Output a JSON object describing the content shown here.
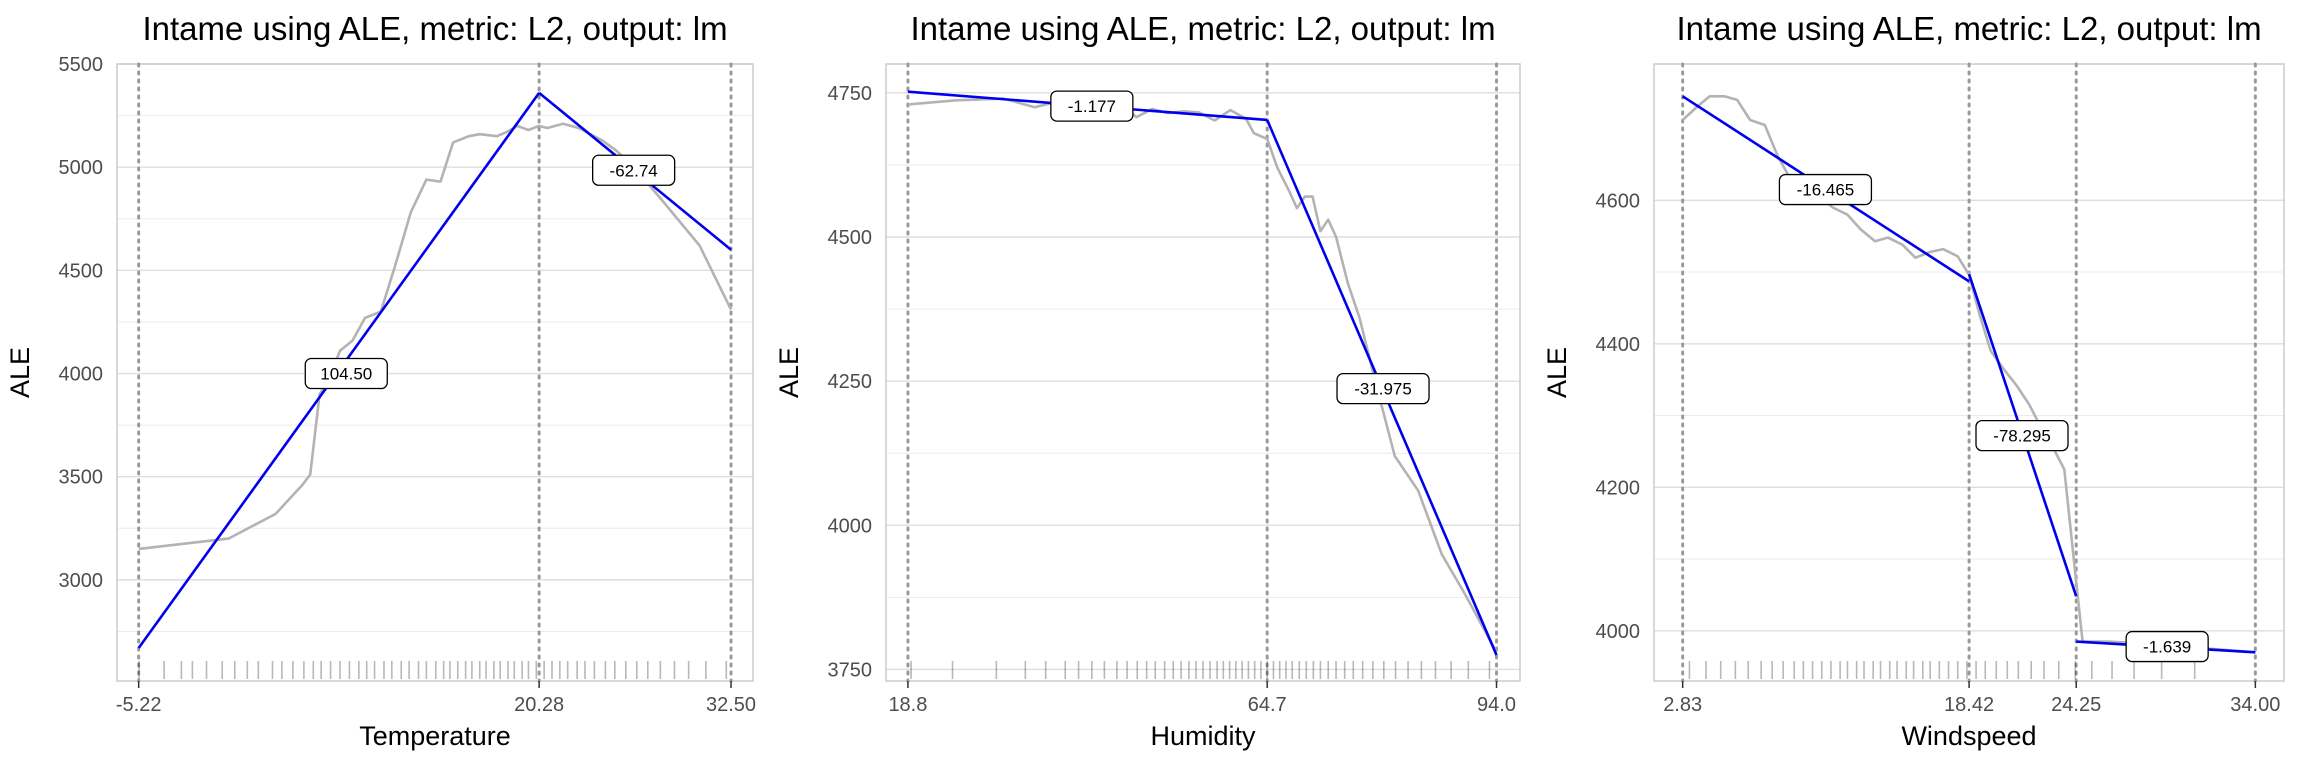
{
  "colors": {
    "ale_line": "#b3b3b3",
    "fit_line": "#0000ee",
    "gridline": "#ebebeb",
    "breakpoint_line": "#999999",
    "rug": "#000000",
    "label_border": "#000000",
    "panel_border": "#cccccc"
  },
  "chart_data": [
    {
      "type": "line",
      "title": "Intame using ALE, metric: L2, output: lm",
      "xlabel": "Temperature",
      "ylabel": "ALE",
      "xlim": [
        -6.6,
        33.9
      ],
      "ylim": [
        2510,
        5500
      ],
      "x_ticks": [
        -5.22,
        20.28,
        32.5
      ],
      "x_tick_labels": [
        "-5.22",
        "20.28",
        "32.50"
      ],
      "y_ticks": [
        3000,
        3500,
        4000,
        4500,
        5000,
        5500
      ],
      "y_tick_labels": [
        "3000",
        "3500",
        "4000",
        "4500",
        "5000",
        "5500"
      ],
      "breakpoints": [
        -5.22,
        20.28,
        32.5
      ],
      "ale_series": {
        "x": [
          -5.22,
          0.5,
          3.5,
          5.2,
          5.7,
          6.3,
          6.8,
          7.6,
          8.4,
          9.2,
          10.2,
          11.1,
          12.1,
          13.1,
          14.0,
          14.8,
          15.8,
          16.5,
          17.6,
          18.2,
          18.9,
          19.6,
          20.28,
          20.8,
          21.8,
          22.8,
          24.3,
          25.2,
          26.3,
          28.0,
          30.5,
          32.5
        ],
        "y": [
          3150,
          3200,
          3320,
          3460,
          3510,
          3900,
          3960,
          4110,
          4160,
          4270,
          4300,
          4520,
          4780,
          4940,
          4930,
          5120,
          5150,
          5160,
          5150,
          5170,
          5200,
          5180,
          5200,
          5190,
          5210,
          5190,
          5130,
          5080,
          5000,
          4850,
          4620,
          4310
        ]
      },
      "fit_segments": [
        {
          "x": [
            -5.22,
            20.28
          ],
          "y": [
            2670,
            5360
          ],
          "slope_label": "104.50",
          "label_at": [
            8.0,
            4000
          ]
        },
        {
          "x": [
            20.28,
            32.5
          ],
          "y": [
            5360,
            4600
          ],
          "slope_label": "-62.74",
          "label_at": [
            26.3,
            4985
          ]
        }
      ],
      "rug": [
        -5.2,
        -3.6,
        -2.5,
        -1.8,
        -0.9,
        0.1,
        0.9,
        1.7,
        2.4,
        3.3,
        3.9,
        4.6,
        5.3,
        5.9,
        6.4,
        7.0,
        7.6,
        8.2,
        8.8,
        9.3,
        9.8,
        10.4,
        10.9,
        11.5,
        12.0,
        12.6,
        13.1,
        13.7,
        14.2,
        14.6,
        15.1,
        15.6,
        16.0,
        16.5,
        16.9,
        17.4,
        17.8,
        18.3,
        18.7,
        19.2,
        19.6,
        20.1,
        20.6,
        21.1,
        21.6,
        22.1,
        22.7,
        23.2,
        23.8,
        24.5,
        25.1,
        25.8,
        26.5,
        27.2,
        28.0,
        28.9,
        29.8,
        30.9,
        32.2
      ]
    },
    {
      "type": "line",
      "title": "Intame using ALE, metric: L2, output: lm",
      "xlabel": "Humidity",
      "ylabel": "ALE",
      "xlim": [
        16.0,
        97.0
      ],
      "ylim": [
        3730,
        4800
      ],
      "x_ticks": [
        18.8,
        64.7,
        94.0
      ],
      "x_tick_labels": [
        "18.8",
        "64.7",
        "94.0"
      ],
      "y_ticks": [
        3750,
        4000,
        4250,
        4500,
        4750
      ],
      "y_tick_labels": [
        "3750",
        "4000",
        "4250",
        "4500",
        "4750"
      ],
      "breakpoints": [
        18.8,
        64.7,
        94.0
      ],
      "ale_series": {
        "x": [
          18.8,
          25.0,
          31.0,
          35.0,
          38.0,
          40.0,
          42.0,
          44.0,
          46.0,
          48.0,
          50.0,
          52.0,
          54.0,
          56.0,
          58.0,
          60.0,
          62.0,
          63.0,
          64.7,
          66.0,
          67.5,
          68.5,
          69.5,
          70.5,
          71.5,
          72.5,
          73.5,
          75.0,
          76.5,
          78.5,
          81.0,
          84.0,
          87.0,
          90.0,
          94.0
        ],
        "y": [
          4730,
          4737,
          4740,
          4725,
          4735,
          4720,
          4730,
          4715,
          4730,
          4708,
          4722,
          4715,
          4718,
          4716,
          4702,
          4720,
          4705,
          4680,
          4670,
          4620,
          4580,
          4550,
          4570,
          4570,
          4510,
          4530,
          4500,
          4420,
          4360,
          4250,
          4120,
          4060,
          3950,
          3880,
          3780
        ]
      },
      "fit_segments": [
        {
          "x": [
            18.8,
            64.7
          ],
          "y": [
            4752,
            4703
          ],
          "slope_label": "-1.177",
          "label_at": [
            42.3,
            4727
          ]
        },
        {
          "x": [
            64.7,
            94.0
          ],
          "y": [
            4703,
            3775
          ],
          "slope_label": "-31.975",
          "label_at": [
            79.5,
            4237
          ]
        }
      ],
      "rug": [
        19.2,
        24.5,
        30.1,
        33.8,
        36.4,
        38.9,
        40.6,
        42.3,
        43.9,
        45.5,
        46.8,
        48.1,
        49.3,
        50.4,
        51.6,
        52.7,
        53.7,
        54.7,
        55.6,
        56.5,
        57.4,
        58.3,
        59.1,
        59.9,
        60.7,
        61.5,
        62.3,
        63.1,
        63.9,
        64.7,
        65.5,
        66.3,
        67.1,
        67.9,
        68.8,
        69.7,
        70.6,
        71.5,
        72.5,
        73.5,
        74.6,
        75.7,
        76.9,
        78.2,
        79.6,
        81.1,
        82.7,
        84.4,
        86.2,
        88.2,
        90.4,
        93.1
      ]
    },
    {
      "type": "line",
      "title": "Intame using ALE, metric: L2, output: lm",
      "xlabel": "Windspeed",
      "ylabel": "ALE",
      "xlim": [
        1.27,
        35.56
      ],
      "ylim": [
        3930,
        4790
      ],
      "x_ticks": [
        2.83,
        18.42,
        24.25,
        34.0
      ],
      "x_tick_labels": [
        "2.83",
        "18.42",
        "24.25",
        "34.00"
      ],
      "y_ticks": [
        4000,
        4200,
        4400,
        4600
      ],
      "y_tick_labels": [
        "4000",
        "4200",
        "4400",
        "4600"
      ],
      "breakpoints": [
        2.83,
        18.42,
        24.25,
        34.0
      ],
      "ale_series": {
        "x": [
          2.83,
          3.6,
          4.3,
          5.1,
          5.8,
          6.5,
          7.3,
          8.0,
          8.8,
          9.5,
          10.3,
          11.0,
          11.8,
          12.5,
          13.3,
          14.0,
          14.8,
          15.5,
          16.3,
          17.0,
          17.8,
          18.42,
          19.0,
          19.6,
          20.3,
          21.0,
          21.7,
          22.3,
          23.0,
          23.6,
          24.25,
          24.6,
          26.0,
          28.0,
          30.0,
          32.0,
          34.0
        ],
        "y": [
          4712,
          4730,
          4745,
          4745,
          4740,
          4712,
          4705,
          4662,
          4625,
          4618,
          4605,
          4590,
          4580,
          4560,
          4543,
          4548,
          4538,
          4520,
          4528,
          4532,
          4522,
          4496,
          4440,
          4390,
          4365,
          4342,
          4315,
          4285,
          4255,
          4225,
          4068,
          3985,
          3985,
          3982,
          3978,
          3974,
          3970
        ]
      },
      "fit_segments": [
        {
          "x": [
            2.83,
            18.42
          ],
          "y": [
            4745,
            4487
          ],
          "slope_label": "-16.465",
          "label_at": [
            10.6,
            4615
          ]
        },
        {
          "x": [
            18.42,
            24.25
          ],
          "y": [
            4497,
            4048
          ],
          "slope_label": "-78.295",
          "label_at": [
            21.3,
            4272
          ]
        },
        {
          "x": [
            24.25,
            34.0
          ],
          "y": [
            3985,
            3970
          ],
          "slope_label": "-1.639",
          "label_at": [
            29.2,
            3978
          ]
        }
      ],
      "rug": [
        3.2,
        4.1,
        4.9,
        5.7,
        6.4,
        7.1,
        7.7,
        8.3,
        8.9,
        9.4,
        9.9,
        10.4,
        10.9,
        11.4,
        11.8,
        12.3,
        12.7,
        13.2,
        13.6,
        14.1,
        14.5,
        15.0,
        15.4,
        15.9,
        16.3,
        16.8,
        17.3,
        17.8,
        18.3,
        18.8,
        19.3,
        19.9,
        20.5,
        21.1,
        21.8,
        22.5,
        23.3,
        24.2,
        25.1,
        26.2,
        27.4,
        28.9,
        30.7
      ]
    }
  ]
}
